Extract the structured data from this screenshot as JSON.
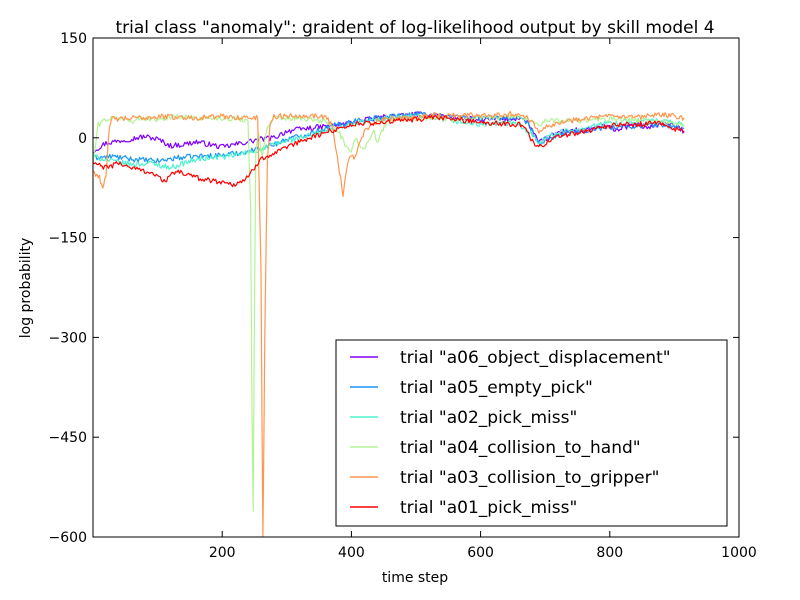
{
  "chart_data": {
    "type": "line",
    "title": "trial class \"anomaly\": graident of log-likelihood output by skill model 4",
    "xlabel": "time step",
    "ylabel": "log probability",
    "xlim": [
      0,
      1000
    ],
    "ylim": [
      -600,
      150
    ],
    "xticks": [
      200,
      400,
      600,
      800,
      1000
    ],
    "xtick_labels": [
      "200",
      "400",
      "600",
      "800",
      "1000"
    ],
    "yticks": [
      150,
      0,
      -150,
      -300,
      -450,
      -600
    ],
    "ytick_labels": [
      "150",
      "0",
      "−150",
      "−300",
      "−450",
      "−600"
    ],
    "grid": false,
    "legend_position": "lower-right",
    "series": [
      {
        "name": "trial \"a06_object_displacement\"",
        "color": "#8000ff",
        "points": [
          [
            0,
            -20
          ],
          [
            20,
            -8
          ],
          [
            50,
            -3
          ],
          [
            80,
            2
          ],
          [
            100,
            -2
          ],
          [
            120,
            -12
          ],
          [
            140,
            -10
          ],
          [
            160,
            -6
          ],
          [
            180,
            -10
          ],
          [
            200,
            -14
          ],
          [
            220,
            -10
          ],
          [
            240,
            -6
          ],
          [
            260,
            -2
          ],
          [
            280,
            0
          ],
          [
            300,
            10
          ],
          [
            330,
            14
          ],
          [
            360,
            17
          ],
          [
            400,
            22
          ],
          [
            430,
            28
          ],
          [
            460,
            32
          ],
          [
            500,
            35
          ],
          [
            530,
            34
          ],
          [
            560,
            30
          ],
          [
            600,
            27
          ],
          [
            640,
            28
          ],
          [
            660,
            30
          ],
          [
            670,
            26
          ],
          [
            680,
            12
          ],
          [
            690,
            -8
          ],
          [
            700,
            -2
          ],
          [
            720,
            8
          ],
          [
            740,
            12
          ],
          [
            760,
            10
          ],
          [
            790,
            18
          ],
          [
            810,
            12
          ],
          [
            840,
            20
          ],
          [
            860,
            15
          ],
          [
            880,
            22
          ],
          [
            900,
            18
          ],
          [
            915,
            10
          ]
        ]
      },
      {
        "name": "trial \"a05_empty_pick\"",
        "color": "#1996f3",
        "points": [
          [
            0,
            -30
          ],
          [
            30,
            -28
          ],
          [
            60,
            -32
          ],
          [
            100,
            -35
          ],
          [
            130,
            -30
          ],
          [
            160,
            -28
          ],
          [
            200,
            -26
          ],
          [
            230,
            -22
          ],
          [
            250,
            -18
          ],
          [
            280,
            -10
          ],
          [
            300,
            -2
          ],
          [
            330,
            5
          ],
          [
            360,
            15
          ],
          [
            400,
            25
          ],
          [
            440,
            30
          ],
          [
            470,
            33
          ],
          [
            500,
            36
          ],
          [
            530,
            34
          ],
          [
            560,
            32
          ],
          [
            600,
            30
          ],
          [
            640,
            30
          ],
          [
            660,
            28
          ],
          [
            670,
            24
          ],
          [
            680,
            10
          ],
          [
            690,
            -10
          ],
          [
            700,
            -5
          ],
          [
            720,
            5
          ],
          [
            760,
            10
          ],
          [
            800,
            16
          ],
          [
            840,
            18
          ],
          [
            880,
            20
          ],
          [
            915,
            14
          ]
        ]
      },
      {
        "name": "trial \"a02_pick_miss\"",
        "color": "#4cf2ce",
        "points": [
          [
            0,
            -28
          ],
          [
            30,
            -35
          ],
          [
            60,
            -40
          ],
          [
            90,
            -38
          ],
          [
            120,
            -45
          ],
          [
            150,
            -35
          ],
          [
            180,
            -30
          ],
          [
            210,
            -28
          ],
          [
            240,
            -22
          ],
          [
            260,
            -18
          ],
          [
            280,
            -10
          ],
          [
            300,
            -5
          ],
          [
            330,
            2
          ],
          [
            360,
            10
          ],
          [
            400,
            20
          ],
          [
            430,
            26
          ],
          [
            460,
            30
          ],
          [
            500,
            32
          ],
          [
            540,
            28
          ],
          [
            580,
            22
          ],
          [
            610,
            20
          ],
          [
            640,
            22
          ],
          [
            660,
            20
          ],
          [
            680,
            5
          ],
          [
            690,
            -6
          ],
          [
            700,
            0
          ],
          [
            720,
            8
          ],
          [
            760,
            15
          ],
          [
            800,
            22
          ],
          [
            850,
            26
          ],
          [
            880,
            25
          ],
          [
            915,
            20
          ]
        ]
      },
      {
        "name": "trial \"a04_collision_to_hand\"",
        "color": "#b2f396",
        "points": [
          [
            0,
            -40
          ],
          [
            8,
            20
          ],
          [
            20,
            28
          ],
          [
            40,
            30
          ],
          [
            60,
            25
          ],
          [
            80,
            30
          ],
          [
            100,
            28
          ],
          [
            130,
            32
          ],
          [
            160,
            30
          ],
          [
            200,
            30
          ],
          [
            230,
            28
          ],
          [
            240,
            25
          ],
          [
            244,
            -100
          ],
          [
            246,
            -400
          ],
          [
            248,
            -560
          ],
          [
            250,
            -250
          ],
          [
            252,
            -20
          ],
          [
            256,
            10
          ],
          [
            262,
            -30
          ],
          [
            268,
            10
          ],
          [
            280,
            30
          ],
          [
            320,
            28
          ],
          [
            360,
            25
          ],
          [
            380,
            10
          ],
          [
            390,
            -10
          ],
          [
            398,
            -25
          ],
          [
            405,
            0
          ],
          [
            410,
            -5
          ],
          [
            418,
            -20
          ],
          [
            425,
            -5
          ],
          [
            435,
            10
          ],
          [
            440,
            -10
          ],
          [
            445,
            5
          ],
          [
            455,
            25
          ],
          [
            480,
            28
          ],
          [
            520,
            30
          ],
          [
            560,
            28
          ],
          [
            600,
            30
          ],
          [
            640,
            32
          ],
          [
            670,
            30
          ],
          [
            690,
            20
          ],
          [
            700,
            25
          ],
          [
            760,
            26
          ],
          [
            800,
            28
          ],
          [
            850,
            26
          ],
          [
            880,
            24
          ],
          [
            915,
            20
          ]
        ]
      },
      {
        "name": "trial \"a03_collision_to_gripper\"",
        "color": "#ff964f",
        "points": [
          [
            0,
            -50
          ],
          [
            10,
            -60
          ],
          [
            15,
            -75
          ],
          [
            20,
            -55
          ],
          [
            25,
            10
          ],
          [
            30,
            30
          ],
          [
            40,
            28
          ],
          [
            70,
            30
          ],
          [
            110,
            32
          ],
          [
            150,
            30
          ],
          [
            200,
            32
          ],
          [
            240,
            30
          ],
          [
            255,
            30
          ],
          [
            260,
            -200
          ],
          [
            263,
            -600
          ],
          [
            266,
            -300
          ],
          [
            270,
            -30
          ],
          [
            274,
            20
          ],
          [
            280,
            32
          ],
          [
            320,
            34
          ],
          [
            360,
            32
          ],
          [
            370,
            20
          ],
          [
            380,
            -40
          ],
          [
            387,
            -85
          ],
          [
            392,
            -50
          ],
          [
            398,
            -25
          ],
          [
            406,
            -30
          ],
          [
            412,
            -10
          ],
          [
            420,
            10
          ],
          [
            440,
            25
          ],
          [
            470,
            30
          ],
          [
            500,
            32
          ],
          [
            540,
            34
          ],
          [
            580,
            34
          ],
          [
            620,
            35
          ],
          [
            660,
            36
          ],
          [
            680,
            25
          ],
          [
            690,
            10
          ],
          [
            700,
            18
          ],
          [
            720,
            22
          ],
          [
            760,
            30
          ],
          [
            800,
            32
          ],
          [
            840,
            30
          ],
          [
            880,
            35
          ],
          [
            915,
            30
          ]
        ]
      },
      {
        "name": "trial \"a01_pick_miss\"",
        "color": "#ff0000",
        "points": [
          [
            0,
            -38
          ],
          [
            20,
            -45
          ],
          [
            40,
            -38
          ],
          [
            60,
            -45
          ],
          [
            90,
            -52
          ],
          [
            110,
            -65
          ],
          [
            130,
            -50
          ],
          [
            160,
            -60
          ],
          [
            190,
            -65
          ],
          [
            220,
            -70
          ],
          [
            240,
            -60
          ],
          [
            260,
            -30
          ],
          [
            280,
            -25
          ],
          [
            300,
            -15
          ],
          [
            330,
            -2
          ],
          [
            360,
            8
          ],
          [
            400,
            20
          ],
          [
            430,
            22
          ],
          [
            460,
            24
          ],
          [
            500,
            28
          ],
          [
            540,
            30
          ],
          [
            580,
            26
          ],
          [
            620,
            22
          ],
          [
            660,
            20
          ],
          [
            670,
            15
          ],
          [
            680,
            -5
          ],
          [
            690,
            -15
          ],
          [
            700,
            -8
          ],
          [
            720,
            2
          ],
          [
            760,
            10
          ],
          [
            800,
            18
          ],
          [
            840,
            20
          ],
          [
            880,
            22
          ],
          [
            915,
            8
          ]
        ]
      }
    ]
  }
}
